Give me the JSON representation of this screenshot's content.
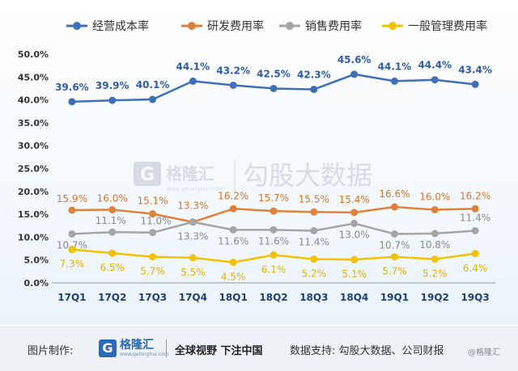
{
  "chart_data": {
    "type": "line",
    "categories": [
      "17Q1",
      "17Q2",
      "17Q3",
      "17Q4",
      "18Q1",
      "18Q2",
      "18Q3",
      "18Q4",
      "19Q1",
      "19Q2",
      "19Q3"
    ],
    "series": [
      {
        "name": "经营成本率",
        "values": [
          39.6,
          39.9,
          40.1,
          44.1,
          43.2,
          42.5,
          42.3,
          45.6,
          44.1,
          44.4,
          43.4
        ],
        "color": "#3f6fb8",
        "label_color": "#2f5da8"
      },
      {
        "name": "研发费用率",
        "values": [
          15.9,
          16.0,
          15.1,
          13.3,
          16.2,
          15.7,
          15.5,
          15.4,
          16.6,
          16.0,
          16.2
        ],
        "color": "#e0813b",
        "label_color": "#d8742c"
      },
      {
        "name": "销售费用率",
        "values": [
          10.7,
          11.1,
          11.0,
          13.3,
          11.6,
          11.6,
          11.4,
          13.0,
          10.7,
          10.8,
          11.4
        ],
        "color": "#a5a5a5",
        "label_color": "#8a8a8a"
      },
      {
        "name": "一般管理费用率",
        "values": [
          7.3,
          6.5,
          5.7,
          5.5,
          4.5,
          6.1,
          5.2,
          5.1,
          5.7,
          5.2,
          6.4
        ],
        "color": "#f2c200",
        "label_color": "#e1b300"
      }
    ],
    "y_ticks": [
      "0.0%",
      "5.0%",
      "10.0%",
      "15.0%",
      "20.0%",
      "25.0%",
      "30.0%",
      "35.0%",
      "40.0%",
      "45.0%",
      "50.0%"
    ],
    "ylim": [
      0,
      50
    ],
    "legend_position": "top",
    "grid": false
  },
  "watermark": {
    "brand": "格隆汇",
    "url": "www.gelonghui.com",
    "partner": "勾股大数据"
  },
  "footer": {
    "made_by_label": "图片制作:",
    "logo_brand": "格隆汇",
    "logo_url": "www.gelonghui.com",
    "slogan": "全球视野 下注中国",
    "data_support": "数据支持: 勾股大数据、公司财报",
    "credit": "@格隆汇"
  }
}
